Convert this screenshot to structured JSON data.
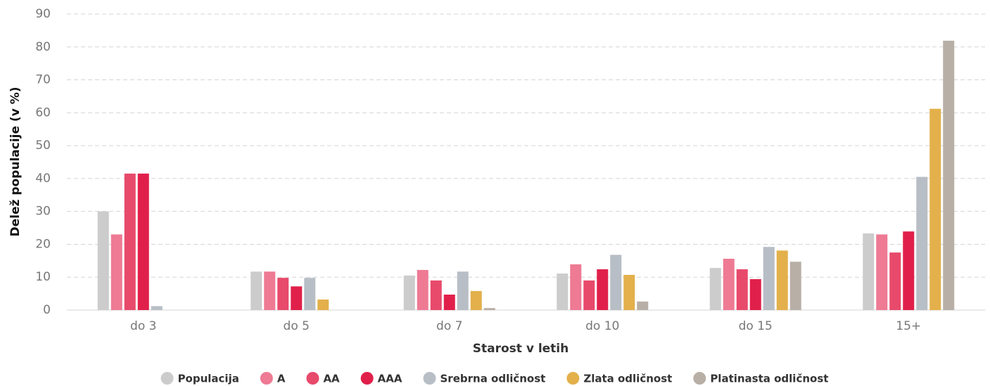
{
  "chart_data": {
    "type": "bar",
    "xlabel": "Starost v letih",
    "ylabel": "Delež populacije (v %)",
    "categories": [
      "do 3",
      "do 5",
      "do 7",
      "do 10",
      "do 15",
      "15+"
    ],
    "series": [
      {
        "name": "Populacija",
        "color": "#cccccc",
        "values": [
          30,
          11.7,
          10.5,
          11.1,
          12.8,
          23.3
        ]
      },
      {
        "name": "A",
        "color": "#ee7a93",
        "values": [
          23,
          11.7,
          12.2,
          13.9,
          15.6,
          23
        ]
      },
      {
        "name": "AA",
        "color": "#e84a6b",
        "values": [
          41.5,
          9.8,
          9,
          9,
          12.4,
          17.5
        ]
      },
      {
        "name": "AAA",
        "color": "#e0204a",
        "values": [
          41.5,
          7.2,
          4.7,
          12.4,
          9.4,
          23.9
        ]
      },
      {
        "name": "Srebrna odličnost",
        "color": "#b8bec6",
        "values": [
          1.2,
          9.8,
          11.7,
          16.8,
          19.2,
          40.5
        ]
      },
      {
        "name": "Zlata odličnost",
        "color": "#e3b04b",
        "values": [
          0,
          3.2,
          5.8,
          10.7,
          18.1,
          61.2
        ]
      },
      {
        "name": "Platinasta odličnost",
        "color": "#b8afa6",
        "values": [
          0,
          0,
          0.6,
          2.6,
          14.7,
          81.9
        ]
      }
    ],
    "ylim": [
      0,
      90
    ],
    "yticks": [
      0,
      10,
      20,
      30,
      40,
      50,
      60,
      70,
      80,
      90
    ],
    "grid": true,
    "legend": "bottom"
  }
}
